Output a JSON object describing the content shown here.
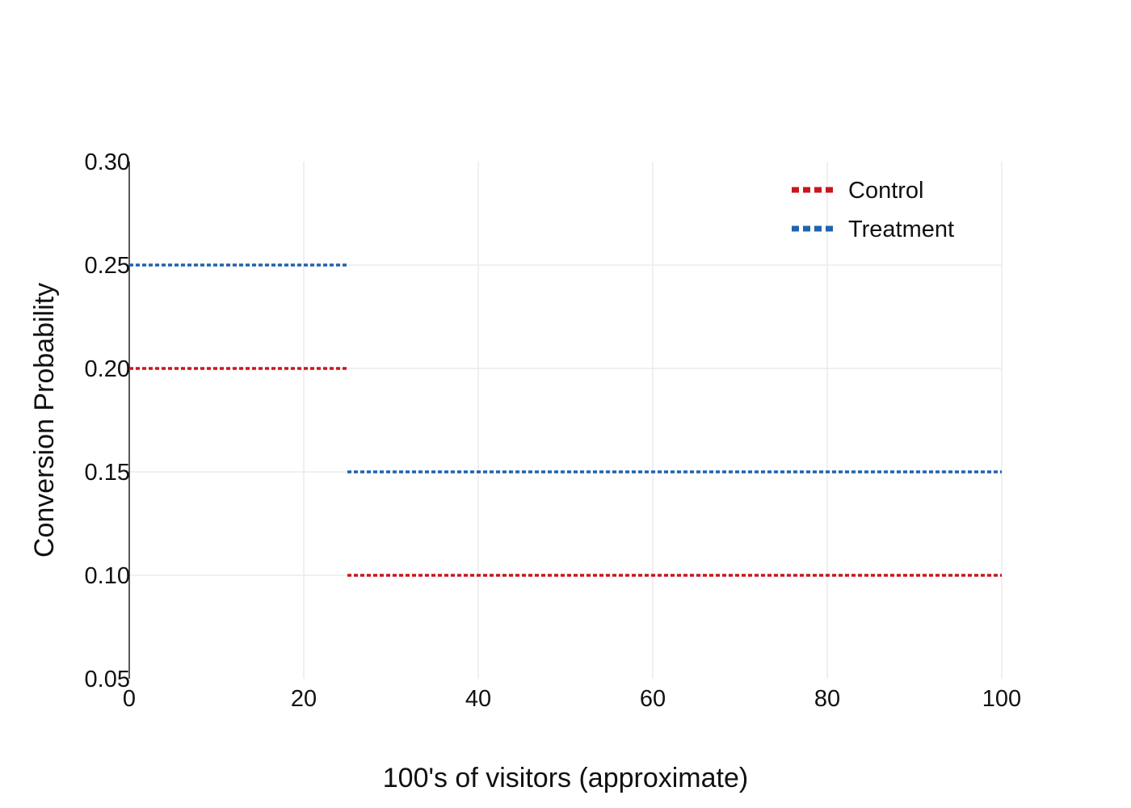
{
  "chart_data": {
    "type": "line",
    "title": "",
    "xlabel": "100's of visitors (approximate)",
    "ylabel": "Conversion Probability",
    "xlim": [
      0,
      100
    ],
    "ylim": [
      0.05,
      0.3
    ],
    "x_ticks": [
      0,
      20,
      40,
      60,
      80,
      100
    ],
    "x_tick_labels": [
      "0",
      "20",
      "40",
      "60",
      "80",
      "100"
    ],
    "y_ticks": [
      0.05,
      0.1,
      0.15,
      0.2,
      0.25,
      0.3
    ],
    "y_tick_labels": [
      "0.05",
      "0.10",
      "0.15",
      "0.20",
      "0.25",
      "0.30"
    ],
    "grid": true,
    "legend_position": "top-right",
    "series": [
      {
        "name": "Control",
        "color": "#c8161e",
        "style": "dotted",
        "segments": [
          {
            "x": [
              0,
              25
            ],
            "y": [
              0.2,
              0.2
            ]
          },
          {
            "x": [
              25,
              100
            ],
            "y": [
              0.1,
              0.1
            ]
          }
        ]
      },
      {
        "name": "Treatment",
        "color": "#1f63b0",
        "style": "dotted",
        "segments": [
          {
            "x": [
              0,
              25
            ],
            "y": [
              0.25,
              0.25
            ]
          },
          {
            "x": [
              25,
              100
            ],
            "y": [
              0.15,
              0.15
            ]
          }
        ]
      }
    ]
  },
  "colors": {
    "grid": "#ebebeb",
    "axis": "#222222",
    "text": "#111111"
  }
}
